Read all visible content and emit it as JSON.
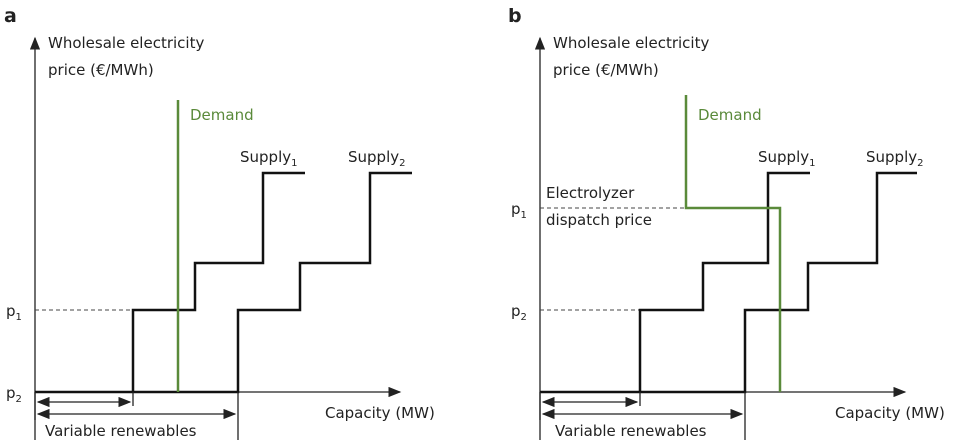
{
  "panels": [
    {
      "label": "a",
      "y_axis_label": [
        "Wholesale electricity",
        "price (€/MWh)"
      ],
      "x_axis_label": "Capacity (MW)",
      "demand": "Demand",
      "supply_1": {
        "text": "Supply",
        "sub": "1"
      },
      "supply_2": {
        "text": "Supply",
        "sub": "2"
      },
      "tick_1": {
        "text": "p",
        "sub": "1"
      },
      "tick_2": {
        "text": "p",
        "sub": "2"
      },
      "range_label": "Variable renewables"
    },
    {
      "label": "b",
      "y_axis_label": [
        "Wholesale electricity",
        "price (€/MWh)"
      ],
      "x_axis_label": "Capacity (MW)",
      "demand": "Demand",
      "supply_1": {
        "text": "Supply",
        "sub": "1"
      },
      "supply_2": {
        "text": "Supply",
        "sub": "2"
      },
      "tick_1": {
        "text": "p",
        "sub": "1"
      },
      "tick_2": {
        "text": "p",
        "sub": "2"
      },
      "range_label": "Variable renewables",
      "annotation": [
        "Electrolyzer",
        "dispatch price"
      ]
    }
  ]
}
